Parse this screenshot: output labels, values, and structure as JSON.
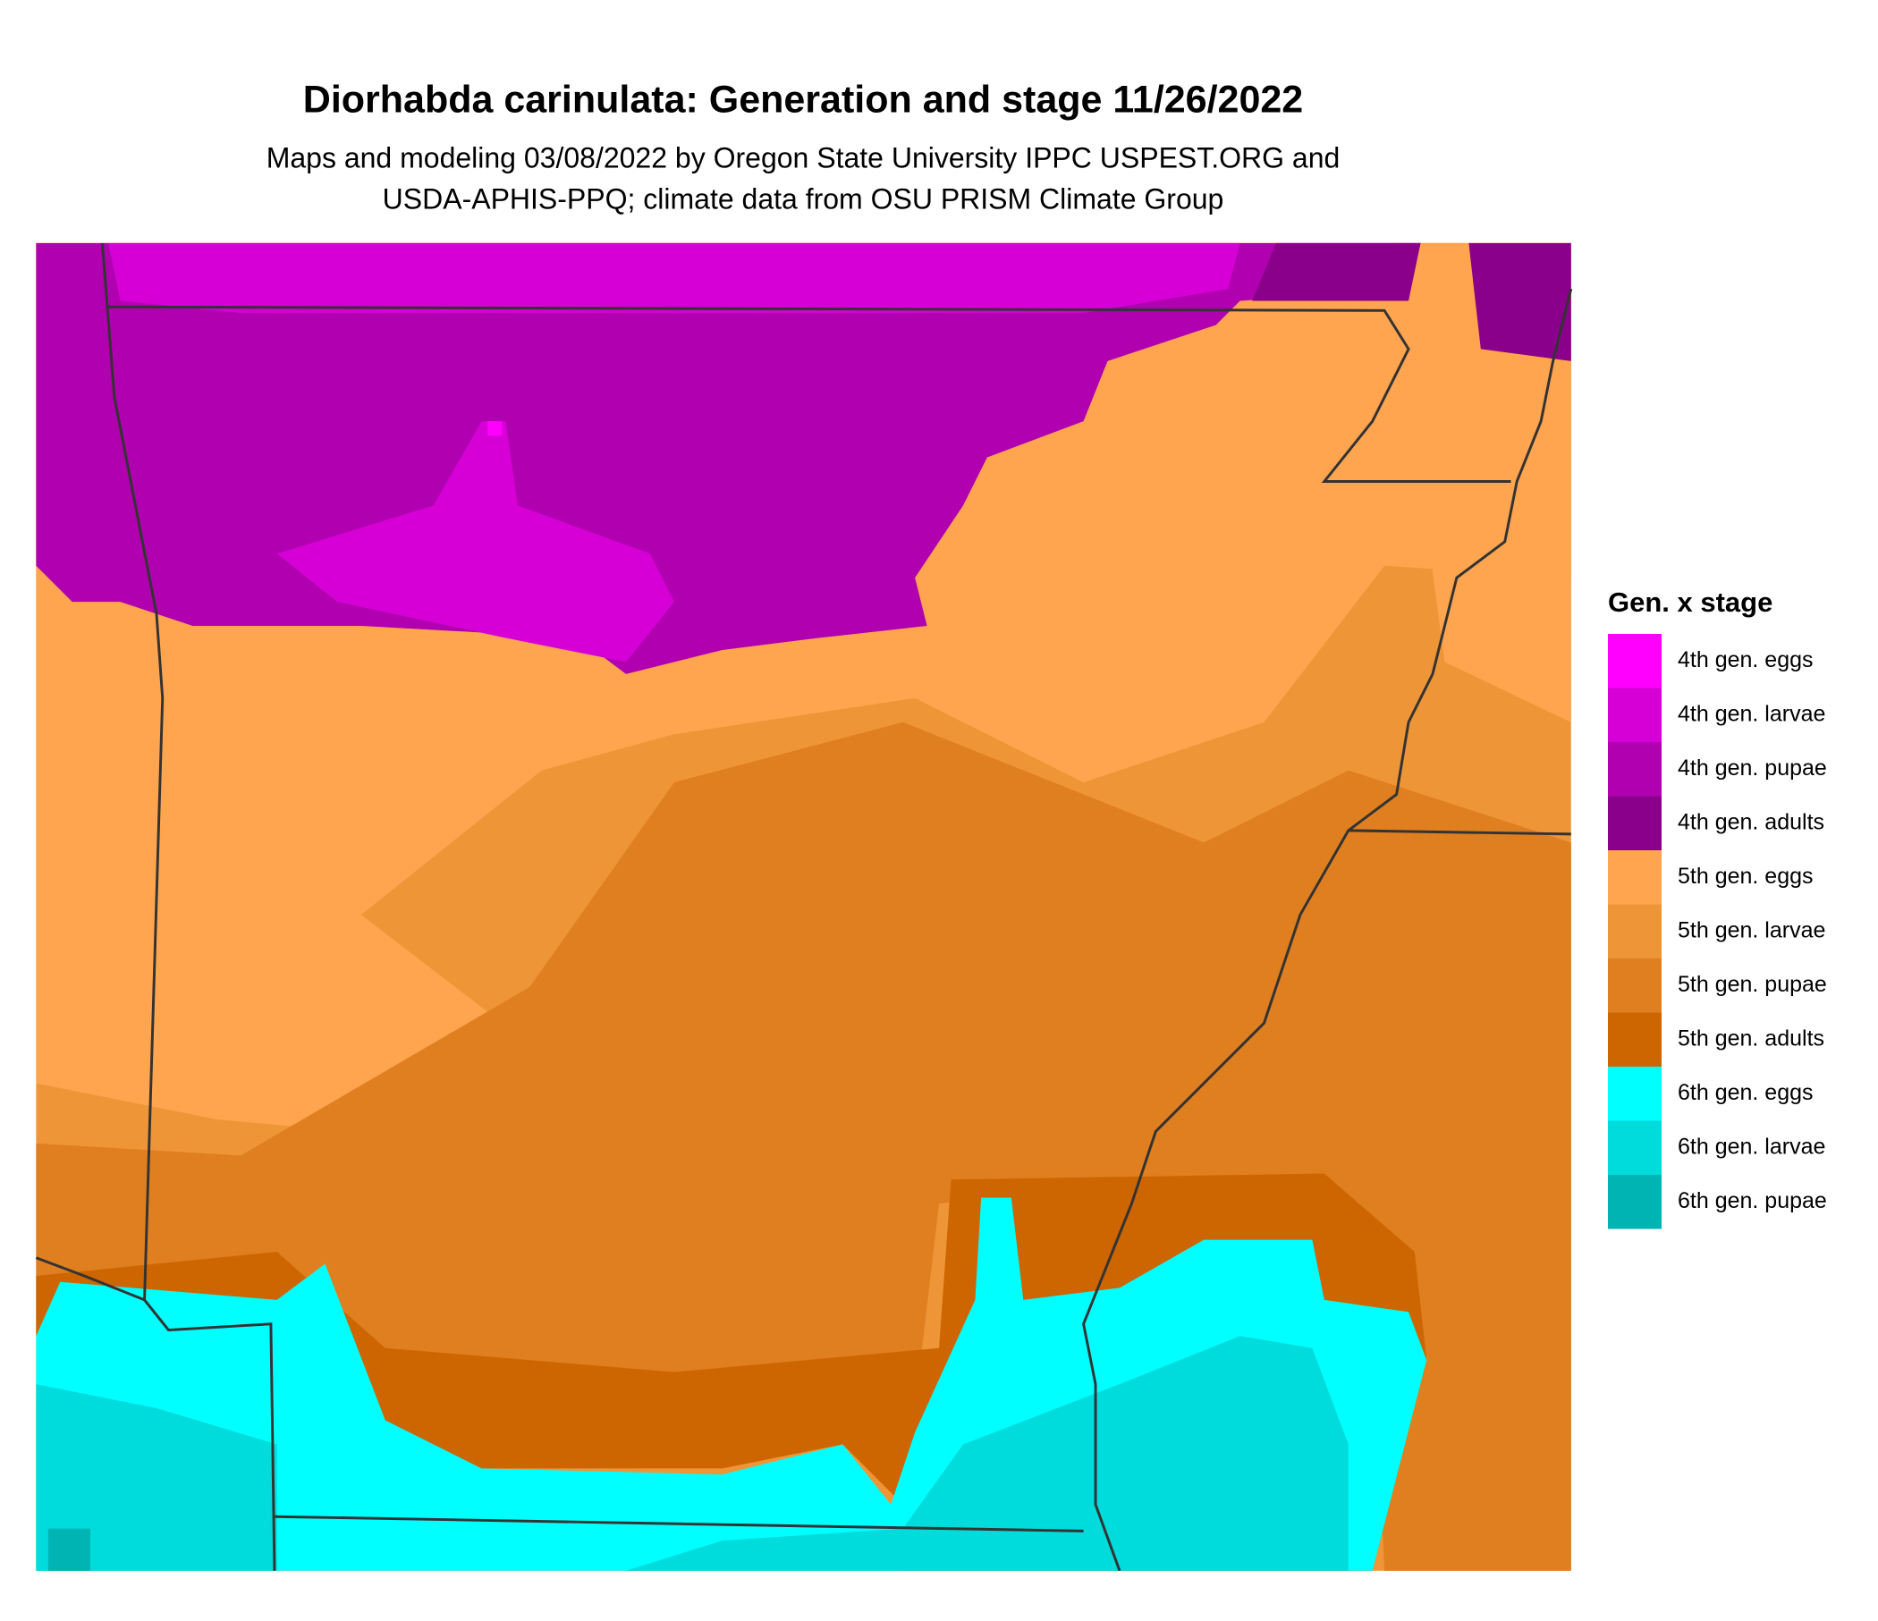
{
  "title": "Diorhabda carinulata: Generation and stage 11/26/2022",
  "subtitle": [
    "Maps and modeling 03/08/2022 by Oregon State University IPPC USPEST.ORG and",
    "USDA-APHIS-PPQ; climate data from OSU PRISM Climate Group"
  ],
  "legend": {
    "title": "Gen. x stage",
    "items": [
      {
        "label": "4th gen. eggs",
        "color": "#ff00ff"
      },
      {
        "label": "4th gen. larvae",
        "color": "#d600d6"
      },
      {
        "label": "4th gen. pupae",
        "color": "#b000b0"
      },
      {
        "label": "4th gen. adults",
        "color": "#8b008b"
      },
      {
        "label": "5th gen. eggs",
        "color": "#ffa54f"
      },
      {
        "label": "5th gen. larvae",
        "color": "#ee9637"
      },
      {
        "label": "5th gen. pupae",
        "color": "#e07f1f"
      },
      {
        "label": "5th gen. adults",
        "color": "#cd6600"
      },
      {
        "label": "6th gen. eggs",
        "color": "#00ffff"
      },
      {
        "label": "6th gen. larvae",
        "color": "#00dbdb"
      },
      {
        "label": "6th gen. pupae",
        "color": "#00b4b4"
      }
    ]
  }
}
